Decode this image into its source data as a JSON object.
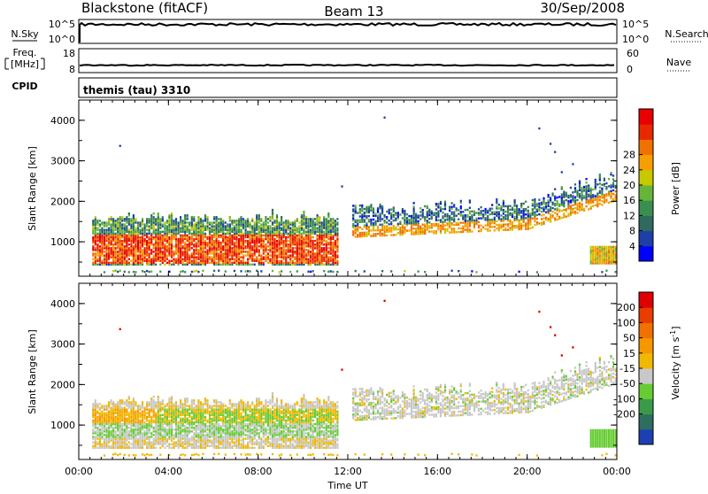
{
  "header": {
    "station": "Blackstone (fitACF)",
    "beam": "Beam 13",
    "date": "30/Sep/2008"
  },
  "top_panel": {
    "left_label": "N.Sky",
    "right_label": "N.Search",
    "left_ticks": [
      "10^5",
      "10^0"
    ],
    "right_ticks": [
      "10^5",
      "10^0"
    ]
  },
  "mid_panel": {
    "left_label_1": "Freq.",
    "left_label_2": "[MHz]",
    "right_label": "Nave",
    "left_ticks": [
      "18",
      "8"
    ],
    "right_ticks": [
      "60",
      "0"
    ]
  },
  "cpid": {
    "label": "CPID",
    "value": "themis (tau) 3310"
  },
  "chart_data": [
    {
      "type": "heatmap",
      "ylabel": "Slant Range [km]",
      "xlabel": "",
      "x_ticks": [
        "00:00",
        "04:00",
        "08:00",
        "12:00",
        "16:00",
        "20:00",
        "00:00"
      ],
      "y_ticks": [
        1000,
        2000,
        3000,
        4000
      ],
      "ylim": [
        150,
        4500
      ],
      "colorbar": {
        "label": "Power [dB]",
        "ticks": [
          4,
          8,
          12,
          16,
          20,
          24,
          28
        ],
        "colors": [
          "#0000ff",
          "#1f3fa8",
          "#2e6b5e",
          "#3a8f4e",
          "#66b43a",
          "#c8c800",
          "#f5a000",
          "#f07000",
          "#e82800",
          "#e80000"
        ]
      }
    },
    {
      "type": "heatmap",
      "ylabel": "Slant Range [km]",
      "xlabel": "Time UT",
      "x_ticks": [
        "00:00",
        "04:00",
        "08:00",
        "12:00",
        "16:00",
        "20:00",
        "00:00"
      ],
      "y_ticks": [
        1000,
        2000,
        3000,
        4000
      ],
      "ylim": [
        150,
        4500
      ],
      "colorbar": {
        "label": "Velocity [m s^-1]",
        "ticks": [
          "200",
          "100",
          "50",
          "15",
          "-15",
          "-50",
          "-100",
          "-200"
        ],
        "colors": [
          "#1e3fb4",
          "#2e6e60",
          "#3a9a48",
          "#66cc33",
          "#c8c8c8",
          "#f0b800",
          "#f59800",
          "#f07000",
          "#e83c00",
          "#e00000"
        ]
      }
    }
  ]
}
